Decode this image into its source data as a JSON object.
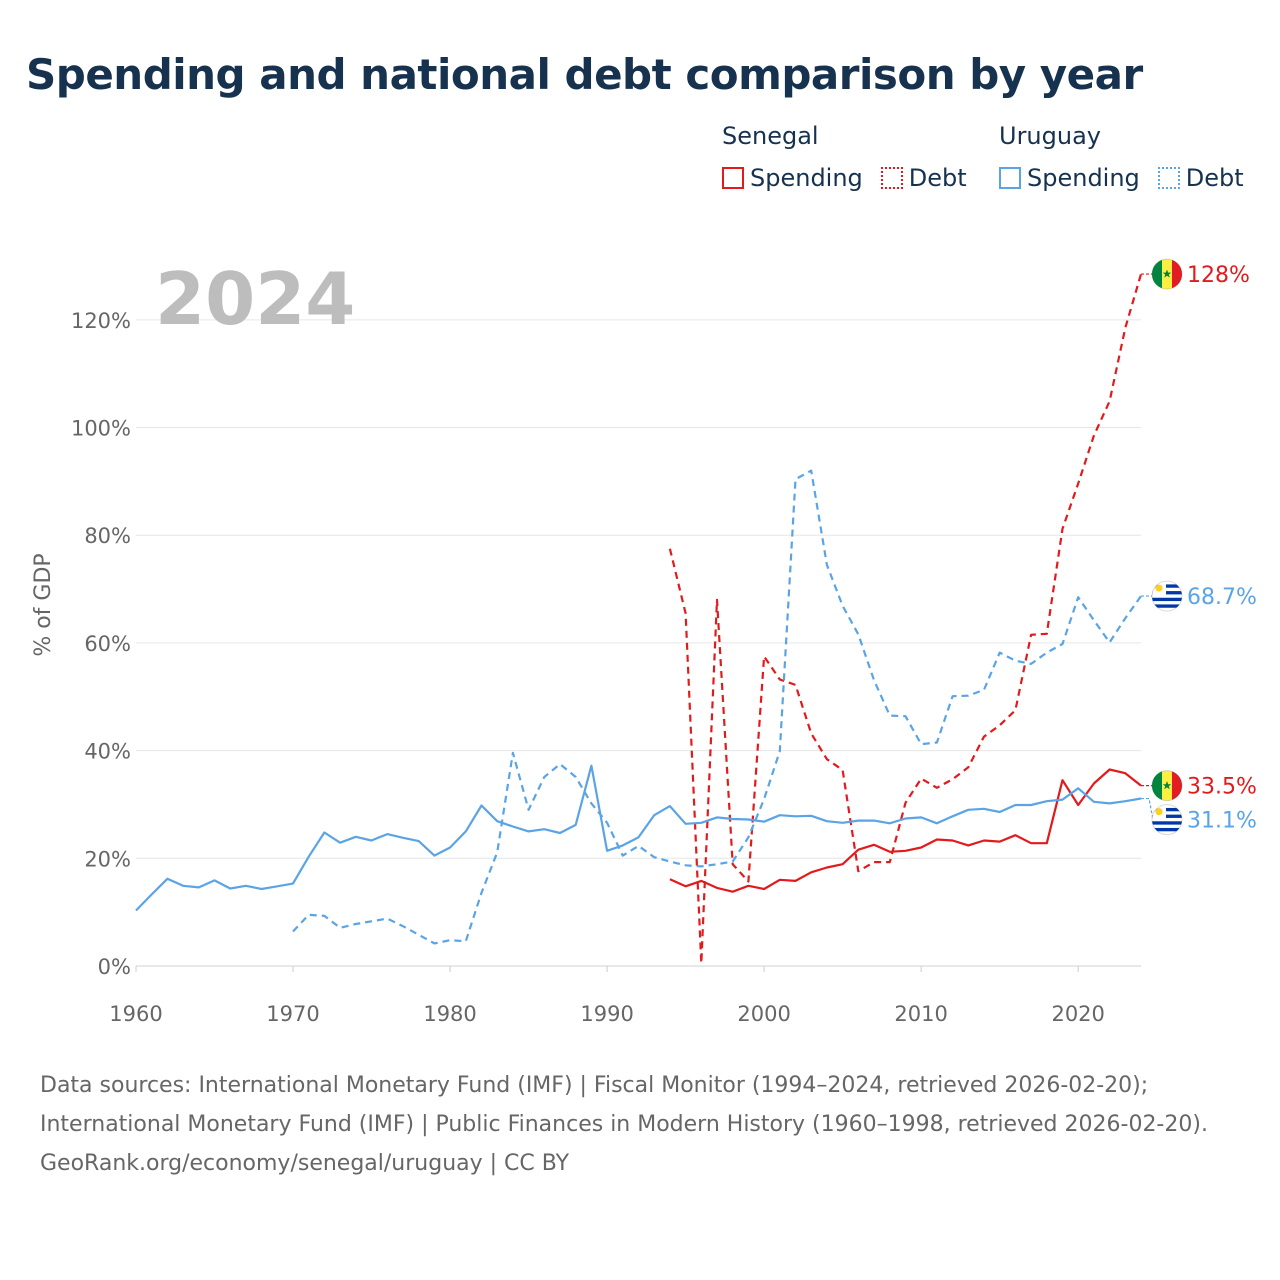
{
  "title": "Spending and national debt comparison by year",
  "legend": {
    "groups": [
      {
        "country": "Senegal",
        "items": [
          {
            "label": "Spending",
            "style": "solid"
          },
          {
            "label": "Debt",
            "style": "dotted"
          }
        ],
        "color": "#e31a1c"
      },
      {
        "country": "Uruguay",
        "items": [
          {
            "label": "Spending",
            "style": "solid"
          },
          {
            "label": "Debt",
            "style": "dotted"
          }
        ],
        "color": "#5aa4e6"
      }
    ]
  },
  "colors": {
    "senegal": "#e31a1c",
    "uruguay": "#5aa4e6",
    "grid": "#e6e6e6",
    "year": "#bdbdbd"
  },
  "footer": {
    "sources": "Data sources: International Monetary Fund (IMF) | Fiscal Monitor (1994–2024, retrieved 2026-02-20); International Monetary Fund (IMF) | Public Finances in Modern History (1960–1998, retrieved 2026-02-20).",
    "credit": "GeoRank.org/economy/senegal/uruguay | CC BY"
  },
  "chart_data": {
    "type": "line",
    "year_label": "2024",
    "ylabel": "% of GDP",
    "xlabel": "",
    "xlim": [
      1960,
      2024
    ],
    "ylim": [
      0,
      130
    ],
    "x_ticks": [
      1960,
      1970,
      1980,
      1990,
      2000,
      2010,
      2020
    ],
    "x_tick_labels": [
      "1960",
      "1970",
      "1980",
      "1990",
      "2000",
      "2010",
      "2020"
    ],
    "y_ticks": [
      0,
      20,
      40,
      60,
      80,
      100,
      120
    ],
    "y_tick_labels": [
      "0%",
      "20%",
      "40%",
      "60%",
      "80%",
      "100%",
      "120%"
    ],
    "series": [
      {
        "name": "Senegal Spending",
        "country": "senegal",
        "style": "solid",
        "color": "#e31a1c",
        "end_label": "33.5%",
        "end_value": 33.5,
        "x": [
          1994,
          1995,
          1996,
          1997,
          1998,
          1999,
          2000,
          2001,
          2002,
          2003,
          2004,
          2005,
          2006,
          2007,
          2008,
          2009,
          2010,
          2011,
          2012,
          2013,
          2014,
          2015,
          2016,
          2017,
          2018,
          2019,
          2020,
          2021,
          2022,
          2023,
          2024
        ],
        "y": [
          16.1,
          14.8,
          15.8,
          14.5,
          13.8,
          14.9,
          14.3,
          16.0,
          15.8,
          17.4,
          18.3,
          18.9,
          21.6,
          22.5,
          21.2,
          21.4,
          22.0,
          23.5,
          23.3,
          22.4,
          23.3,
          23.1,
          24.3,
          22.8,
          22.8,
          34.5,
          29.9,
          33.9,
          36.5,
          35.8,
          33.5
        ]
      },
      {
        "name": "Senegal Debt",
        "country": "senegal",
        "style": "dashed",
        "color": "#e31a1c",
        "end_label": "128%",
        "end_value": 128.5,
        "x": [
          1994,
          1995,
          1996,
          1997,
          1998,
          1999,
          2000,
          2001,
          2002,
          2003,
          2004,
          2005,
          2006,
          2007,
          2008,
          2009,
          2010,
          2011,
          2012,
          2013,
          2014,
          2015,
          2016,
          2017,
          2018,
          2019,
          2020,
          2021,
          2022,
          2023,
          2024
        ],
        "y": [
          77.5,
          65.5,
          0.5,
          68.0,
          18.9,
          15.7,
          57.5,
          53.2,
          52.2,
          43.2,
          38.4,
          36.4,
          17.6,
          19.3,
          19.3,
          30.3,
          34.8,
          33.1,
          34.7,
          36.9,
          42.6,
          44.7,
          47.5,
          61.5,
          61.7,
          81.2,
          89.6,
          98.5,
          104.9,
          118.5,
          128.5
        ]
      },
      {
        "name": "Uruguay Spending",
        "country": "uruguay",
        "style": "solid",
        "color": "#5aa4e6",
        "end_label": "31.1%",
        "end_value": 31.1,
        "x": [
          1960,
          1961,
          1962,
          1963,
          1964,
          1965,
          1966,
          1967,
          1968,
          1969,
          1970,
          1971,
          1972,
          1973,
          1974,
          1975,
          1976,
          1977,
          1978,
          1979,
          1980,
          1981,
          1982,
          1983,
          1984,
          1985,
          1986,
          1987,
          1988,
          1989,
          1990,
          1991,
          1992,
          1993,
          1994,
          1995,
          1996,
          1997,
          1998,
          1999,
          2000,
          2001,
          2002,
          2003,
          2004,
          2005,
          2006,
          2007,
          2008,
          2009,
          2010,
          2011,
          2012,
          2013,
          2014,
          2015,
          2016,
          2017,
          2018,
          2019,
          2020,
          2021,
          2022,
          2023,
          2024
        ],
        "y": [
          10.3,
          13.3,
          16.2,
          14.9,
          14.6,
          15.9,
          14.4,
          14.9,
          14.3,
          14.8,
          15.3,
          20.3,
          24.8,
          22.9,
          24.0,
          23.3,
          24.5,
          23.8,
          23.2,
          20.5,
          22.0,
          25.0,
          29.8,
          26.9,
          25.9,
          25.0,
          25.4,
          24.7,
          26.2,
          37.2,
          21.4,
          22.4,
          23.9,
          28.0,
          29.7,
          26.4,
          26.6,
          27.6,
          27.3,
          27.2,
          26.8,
          28.0,
          27.8,
          27.9,
          26.9,
          26.6,
          27.0,
          27.0,
          26.5,
          27.4,
          27.6,
          26.5,
          27.8,
          29.0,
          29.2,
          28.6,
          29.9,
          29.9,
          30.6,
          30.9,
          33.0,
          30.5,
          30.2,
          30.6,
          31.1
        ]
      },
      {
        "name": "Uruguay Debt",
        "country": "uruguay",
        "style": "dashed",
        "color": "#5aa4e6",
        "end_label": "68.7%",
        "end_value": 68.7,
        "x": [
          1970,
          1971,
          1972,
          1973,
          1974,
          1975,
          1976,
          1977,
          1978,
          1979,
          1980,
          1981,
          1982,
          1983,
          1984,
          1985,
          1986,
          1987,
          1988,
          1989,
          1990,
          1991,
          1992,
          1993,
          1994,
          1995,
          1996,
          1997,
          1998,
          1999,
          2000,
          2001,
          2002,
          2003,
          2004,
          2005,
          2006,
          2007,
          2008,
          2009,
          2010,
          2011,
          2012,
          2013,
          2014,
          2015,
          2016,
          2017,
          2018,
          2019,
          2020,
          2021,
          2022,
          2023,
          2024
        ],
        "y": [
          6.4,
          9.5,
          9.3,
          7.1,
          7.8,
          8.3,
          8.8,
          7.4,
          5.8,
          4.2,
          4.8,
          4.6,
          13.6,
          21.1,
          39.6,
          29.0,
          35.1,
          37.5,
          35.1,
          30.2,
          26.6,
          20.5,
          22.3,
          20.2,
          19.4,
          18.7,
          18.5,
          18.9,
          19.4,
          23.9,
          31.0,
          39.9,
          90.4,
          92.0,
          74.5,
          66.9,
          61.6,
          53.1,
          46.5,
          46.4,
          41.2,
          41.5,
          50.1,
          50.2,
          51.3,
          58.2,
          56.7,
          56.1,
          58.2,
          59.8,
          68.5,
          64.2,
          60.1,
          64.6,
          68.7
        ]
      }
    ]
  }
}
